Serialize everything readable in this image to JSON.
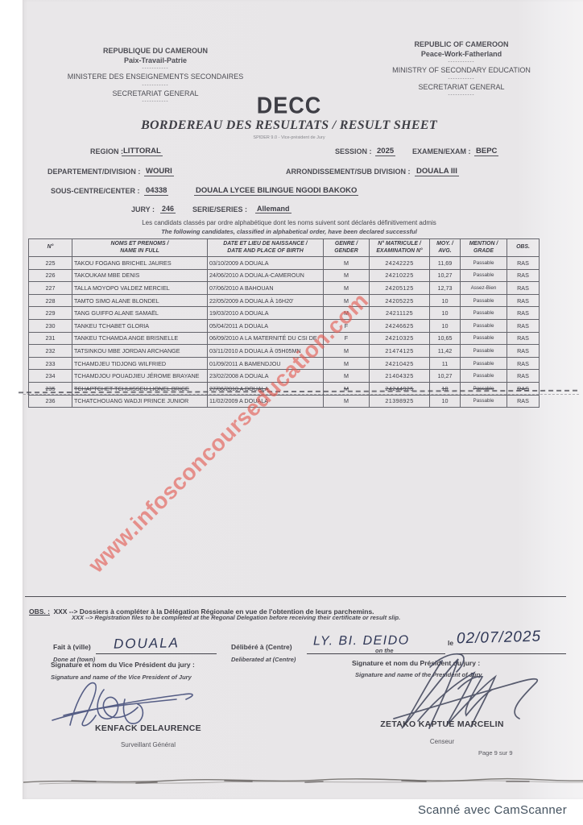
{
  "header": {
    "left": {
      "line1": "REPUBLIQUE DU CAMEROUN",
      "line2": "Paix-Travail-Patrie",
      "line3": "MINISTERE DES ENSEIGNEMENTS SECONDAIRES",
      "line4": "SECRETARIAT GENERAL",
      "sep": "-----------"
    },
    "right": {
      "line1": "REPUBLIC OF CAMEROON",
      "line2": "Peace-Work-Fatherland",
      "line3": "MINISTRY OF SECONDARY EDUCATION",
      "line4": "SECRETARIAT GENERAL",
      "sep": "-----------"
    }
  },
  "title": {
    "main": "DECC",
    "subtitle": "BORDEREAU DES RESULTATS / RESULT SHEET",
    "spider": "SPIDER 9.0 - Vice-président de Jury"
  },
  "info": {
    "region_label": "REGION :",
    "region_value": "LITTORAL",
    "session_label": "SESSION :",
    "session_value": "2025",
    "exam_label": "EXAMEN/EXAM :",
    "exam_value": "BEPC",
    "department_label": "DEPARTEMENT/DIVISION :",
    "department_value": "WOURI",
    "subdivision_label": "ARRONDISSEMENT/SUB DIVISION :",
    "subdivision_value": "DOUALA III",
    "center_label": "SOUS-CENTRE/CENTER :",
    "center_code": "04338",
    "center_name": "DOUALA LYCEE BILINGUE NGODI BAKOKO",
    "jury_label": "JURY :",
    "jury_value": "246",
    "series_label": "SERIE/SERIES :",
    "series_value": "Allemand"
  },
  "notice": {
    "fr": "Les candidats classés par ordre alphabétique dont les noms suivent sont déclarés définitivement admis",
    "en": "The following candidates, classified in alphabetical order, have been declared successful"
  },
  "table": {
    "headers": [
      {
        "fr": "N°",
        "en": ""
      },
      {
        "fr": "NOMS ET PRENOMS /",
        "en": "NAME IN FULL"
      },
      {
        "fr": "DATE ET LIEU DE NAISSANCE /",
        "en": "DATE AND PLACE OF BIRTH"
      },
      {
        "fr": "GENRE /",
        "en": "GENDER"
      },
      {
        "fr": "N° MATRICULE /",
        "en": "EXAMINATION N°"
      },
      {
        "fr": "MOY. /",
        "en": "AVG."
      },
      {
        "fr": "MENTION /",
        "en": "GRADE"
      },
      {
        "fr": "OBS.",
        "en": ""
      }
    ],
    "rows": [
      {
        "num": "225",
        "name": "TAKOU FOGANG BRICHEL JAURES",
        "birth": "03/10/2009 A DOUALA",
        "gender": "M",
        "matricule": "24242225",
        "avg": "11,69",
        "grade": "Passable",
        "obs": "RAS",
        "struck": false
      },
      {
        "num": "226",
        "name": "TAKOUKAM MBE DENIS",
        "birth": "24/06/2010 A DOUALA-CAMEROUN",
        "gender": "M",
        "matricule": "24210225",
        "avg": "10,27",
        "grade": "Passable",
        "obs": "RAS",
        "struck": false
      },
      {
        "num": "227",
        "name": "TALLA MOYOPO VALDEZ MERCIEL",
        "birth": "07/06/2010 A BAHOUAN",
        "gender": "M",
        "matricule": "24205125",
        "avg": "12,73",
        "grade": "Assez-Bien",
        "obs": "RAS",
        "struck": false
      },
      {
        "num": "228",
        "name": "TAMTO SIMO ALANE BLONDEL",
        "birth": "22/05/2009 A DOUALA À 16H20'",
        "gender": "M",
        "matricule": "24205225",
        "avg": "10",
        "grade": "Passable",
        "obs": "RAS",
        "struck": false
      },
      {
        "num": "229",
        "name": "TANG GUIFFO ALANE SAMAËL",
        "birth": "19/03/2010 A DOUALA",
        "gender": "M",
        "matricule": "24211125",
        "avg": "10",
        "grade": "Passable",
        "obs": "RAS",
        "struck": false
      },
      {
        "num": "230",
        "name": "TANKEU TCHABET GLORIA",
        "birth": "05/04/2011 A DOUALA",
        "gender": "F",
        "matricule": "24246625",
        "avg": "10",
        "grade": "Passable",
        "obs": "RAS",
        "struck": false
      },
      {
        "num": "231",
        "name": "TANKEU TCHAMDA ANGE BRISNELLE",
        "birth": "06/09/2010 A LA MATERNITÉ DU CSI DE",
        "gender": "F",
        "matricule": "24210325",
        "avg": "10,65",
        "grade": "Passable",
        "obs": "RAS",
        "struck": false
      },
      {
        "num": "232",
        "name": "TATSINKOU MBE JORDAN ARCHANGE",
        "birth": "03/11/2010 A DOUALA À 05H05MN",
        "gender": "M",
        "matricule": "21474125",
        "avg": "11,42",
        "grade": "Passable",
        "obs": "RAS",
        "struck": false
      },
      {
        "num": "233",
        "name": "TCHAMDJEU TIDJONG WILFRIED",
        "birth": "01/09/2011 A BAMENDJOU",
        "gender": "M",
        "matricule": "24210425",
        "avg": "11",
        "grade": "Passable",
        "obs": "RAS",
        "struck": false
      },
      {
        "num": "234",
        "name": "TCHAMDJOU POUADJIEU JÉROME BRAYANE",
        "birth": "23/02/2008 A DOUALA",
        "gender": "M",
        "matricule": "21404325",
        "avg": "10,27",
        "grade": "Passable",
        "obs": "RAS",
        "struck": false
      },
      {
        "num": "235",
        "name": "TCHAPTCHET TCHUISSEU LIONEL BRICE",
        "birth": "27/06/2010 A DOUALA",
        "gender": "M",
        "matricule": "24244925",
        "avg": "10",
        "grade": "Passable",
        "obs": "RAS",
        "struck": true
      },
      {
        "num": "236",
        "name": "TCHATCHOUANG WADJI PRINCE JUNIOR",
        "birth": "11/02/2009 A DOUALA",
        "gender": "M",
        "matricule": "21398925",
        "avg": "10",
        "grade": "Passable",
        "obs": "RAS",
        "struck": false
      }
    ]
  },
  "watermark": {
    "text": "www.infosconcourseducation.com",
    "color": "#e4564d"
  },
  "obs_note": {
    "label": "OBS. :",
    "fr": "XXX --> Dossiers à compléter à la Délégation Régionale en vue de l'obtention de leurs parchemins.",
    "en": "XXX --> Registration files to be completed at the Regonal Delegation before receiving their certificate or result slip."
  },
  "footer": {
    "done_at_fr": "Fait à (ville)",
    "done_at_en": "Done at (town)",
    "done_at_value": "DOUALA",
    "deliberated_fr": "Délibéré à (Centre)",
    "deliberated_en": "Deliberated at (Centre)",
    "deliberated_value": "LY. BI. DEIDO",
    "date_label_fr": "le",
    "date_label_en": "on the",
    "date_value": "02/07/2025",
    "vp_label_fr": "Signature et nom du Vice Président du jury :",
    "vp_label_en": "Signature and name of the Vice President of Jury",
    "vp_name": "KENFACK DELAURENCE",
    "vp_title": "Surveillant Général",
    "p_label_fr": "Signature et nom  du Président du jury :",
    "p_label_en": "Signature and name of the President of Jury",
    "p_name": "ZETAKO KAPTUE MARCELIN",
    "p_title": "Censeur",
    "page_info": "Page 9 sur 9"
  },
  "scanner_credit": "Scanné avec CamScanner"
}
